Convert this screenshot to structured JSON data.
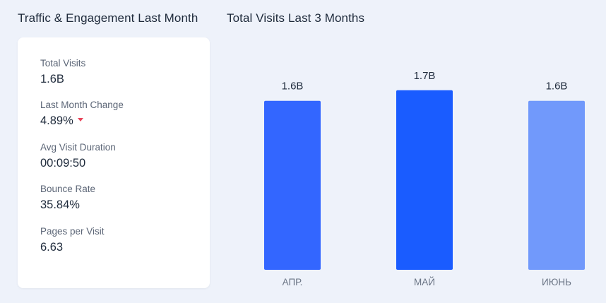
{
  "left_panel": {
    "title": "Traffic & Engagement Last Month",
    "metrics": [
      {
        "label": "Total Visits",
        "value": "1.6B"
      },
      {
        "label": "Last Month Change",
        "value": "4.89%",
        "trend": "down",
        "trend_color": "#e8455a"
      },
      {
        "label": "Avg Visit Duration",
        "value": "00:09:50"
      },
      {
        "label": "Bounce Rate",
        "value": "35.84%"
      },
      {
        "label": "Pages per Visit",
        "value": "6.63"
      }
    ]
  },
  "right_panel": {
    "title": "Total Visits Last 3 Months"
  },
  "colors": {
    "background": "#eef2fa",
    "card": "#ffffff",
    "bar_colors": [
      "#3366ff",
      "#1a5cff",
      "#7199fb"
    ]
  },
  "chart_data": {
    "type": "bar",
    "title": "Total Visits Last 3 Months",
    "categories": [
      "АПР.",
      "МАЙ",
      "ИЮНЬ"
    ],
    "values": [
      1.6,
      1.7,
      1.6
    ],
    "data_labels": [
      "1.6B",
      "1.7B",
      "1.6B"
    ],
    "unit": "B",
    "xlabel": "",
    "ylabel": "",
    "ylim": [
      0,
      2.2
    ],
    "grid": false,
    "legend": "none"
  }
}
